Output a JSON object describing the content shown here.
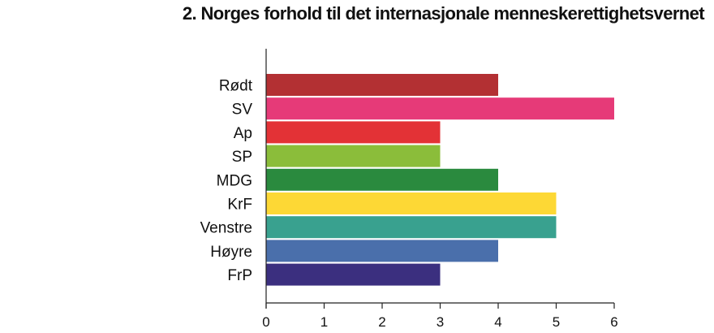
{
  "chart_data": {
    "type": "bar",
    "orientation": "horizontal",
    "title": "2. Norges forhold til det internasjonale menneskerettighetsvernet",
    "xlabel": "",
    "ylabel": "",
    "categories": [
      "Rødt",
      "SV",
      "Ap",
      "SP",
      "MDG",
      "KrF",
      "Venstre",
      "Høyre",
      "FrP"
    ],
    "values": [
      4,
      6,
      3,
      3,
      4,
      5,
      5,
      4,
      3
    ],
    "colors": [
      "#b33033",
      "#e63a78",
      "#e33236",
      "#8bbd3a",
      "#2a8a3e",
      "#fdd835",
      "#39a18f",
      "#4a6fab",
      "#3b2f7f"
    ],
    "xlim": [
      0,
      6
    ],
    "xticks": [
      0,
      1,
      2,
      3,
      4,
      5,
      6
    ],
    "grid": false,
    "legend": "none"
  }
}
